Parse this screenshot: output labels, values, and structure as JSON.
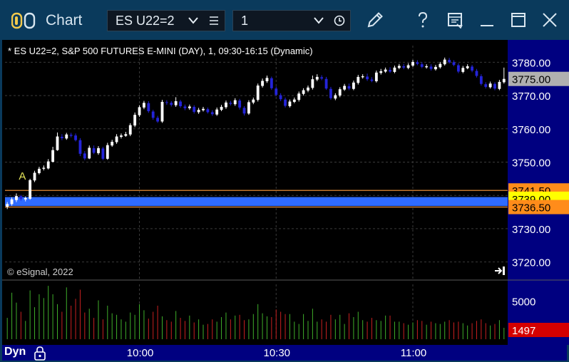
{
  "window": {
    "title": "Chart",
    "symbol_select": {
      "value": "ES U22=2"
    },
    "interval_select": {
      "value": "1"
    },
    "icons": {
      "app": "chart-app-icon",
      "menu": "list-icon",
      "clock": "clock-icon",
      "draw": "pencil-icon",
      "help": "question-icon",
      "layout": "window-layout-icon",
      "minimize": "minimize-icon",
      "maximize": "maximize-icon",
      "close": "close-icon"
    }
  },
  "chart": {
    "caption": "* ES U22=2, S&P 500 FUTURES E-MINI (DAY), 1, 09:30-16:15 (Dynamic)",
    "copyright": "© eSignal, 2022",
    "marker_label": "A",
    "colors": {
      "up": "#ffffff",
      "down": "#2424d8",
      "volume_up": "#3fae2a",
      "volume_down": "#c82020",
      "band": "#2f6bff",
      "band_border": "#ff9a3c",
      "price_axis_bg": "#000080",
      "grid": "#3a3a3a"
    }
  },
  "chart_data": {
    "type": "candlestick",
    "price_axis": {
      "ticks": [
        "3780.00",
        "3770.00",
        "3760.00",
        "3750.00",
        "3740.00",
        "3730.00",
        "3720.00"
      ],
      "tick_values": [
        3780,
        3770,
        3760,
        3750,
        3740,
        3730,
        3720
      ],
      "range": [
        3715,
        3785
      ]
    },
    "price_labels": [
      {
        "text": "3775.00",
        "value": 3775,
        "bg": "#b0b0b0",
        "fg": "#000000"
      },
      {
        "text": "3741.50",
        "value": 3741.5,
        "bg": "#ff8c1a",
        "fg": "#000000"
      },
      {
        "text": "3739.00",
        "value": 3739,
        "bg": "#ffff00",
        "fg": "#000000"
      },
      {
        "text": "3736.50",
        "value": 3736.5,
        "bg": "#ff8c1a",
        "fg": "#000000"
      }
    ],
    "band": {
      "top": 3739.5,
      "bottom": 3736.8
    },
    "band_lines": [
      3741.5,
      3736.5
    ],
    "volume_axis": {
      "ticks": [
        "5000"
      ],
      "tick_values": [
        5000
      ],
      "max": 7200,
      "last_label": "1497"
    },
    "time_axis": {
      "labels": [
        "10:00",
        "10:30",
        "11:00"
      ],
      "label_bars": [
        29,
        59,
        89
      ]
    },
    "bars": [
      [
        3736.6,
        3737.4,
        3738.0,
        3735.9,
        2800
      ],
      [
        3737.4,
        3738.8,
        3739.4,
        3736.9,
        6100
      ],
      [
        3738.6,
        3739.8,
        3740.6,
        3738.0,
        4800
      ],
      [
        3739.8,
        3738.9,
        3740.2,
        3738.4,
        3600
      ],
      [
        3738.8,
        3739.2,
        3739.7,
        3738.2,
        2400
      ],
      [
        3739.0,
        3744.6,
        3745.0,
        3738.7,
        6400
      ],
      [
        3744.5,
        3746.8,
        3747.4,
        3744.0,
        4200
      ],
      [
        3746.7,
        3748.0,
        3748.6,
        3746.3,
        5900
      ],
      [
        3748.0,
        3748.3,
        3749.0,
        3747.5,
        5400
      ],
      [
        3748.1,
        3750.2,
        3750.9,
        3747.8,
        7000
      ],
      [
        3750.1,
        3753.6,
        3754.6,
        3749.9,
        5900
      ],
      [
        3753.6,
        3757.7,
        3758.9,
        3753.4,
        4600
      ],
      [
        3757.6,
        3757.2,
        3758.4,
        3756.6,
        3600
      ],
      [
        3757.1,
        3758.3,
        3758.8,
        3756.7,
        6800
      ],
      [
        3758.2,
        3757.9,
        3758.8,
        3757.4,
        4400
      ],
      [
        3758.0,
        3756.6,
        3758.6,
        3756.2,
        5300
      ],
      [
        3756.6,
        3752.5,
        3757.2,
        3751.8,
        6500
      ],
      [
        3752.6,
        3751.1,
        3753.3,
        3750.6,
        3500
      ],
      [
        3751.1,
        3754.3,
        3755.0,
        3750.9,
        4000
      ],
      [
        3754.2,
        3752.8,
        3755.0,
        3752.4,
        2800
      ],
      [
        3752.7,
        3754.2,
        3754.8,
        3752.2,
        5100
      ],
      [
        3754.1,
        3751.0,
        3754.6,
        3750.6,
        2600
      ],
      [
        3751.0,
        3755.1,
        3755.8,
        3750.7,
        4400
      ],
      [
        3755.0,
        3756.1,
        3756.7,
        3754.6,
        3400
      ],
      [
        3756.0,
        3757.7,
        3758.4,
        3755.5,
        3200
      ],
      [
        3757.6,
        3758.0,
        3758.6,
        3757.1,
        2600
      ],
      [
        3757.9,
        3758.4,
        3759.1,
        3757.6,
        2300
      ],
      [
        3758.3,
        3761.1,
        3761.7,
        3757.8,
        3500
      ],
      [
        3761.0,
        3764.2,
        3764.9,
        3760.5,
        3200
      ],
      [
        3764.1,
        3766.5,
        3767.1,
        3763.6,
        4600
      ],
      [
        3766.4,
        3767.8,
        3768.4,
        3765.9,
        3800
      ],
      [
        3767.7,
        3765.3,
        3768.3,
        3764.8,
        2700
      ],
      [
        3765.2,
        3763.3,
        3765.7,
        3762.7,
        3600
      ],
      [
        3763.3,
        3762.2,
        3763.9,
        3761.8,
        4400
      ],
      [
        3762.2,
        3768.1,
        3768.7,
        3761.8,
        3000
      ],
      [
        3768.0,
        3767.9,
        3768.6,
        3767.2,
        2500
      ],
      [
        3767.8,
        3767.2,
        3768.3,
        3766.7,
        2300
      ],
      [
        3767.1,
        3768.3,
        3769.5,
        3766.6,
        3700
      ],
      [
        3768.2,
        3766.8,
        3768.7,
        3766.3,
        2800
      ],
      [
        3766.7,
        3766.2,
        3767.3,
        3765.6,
        2400
      ],
      [
        3766.2,
        3766.7,
        3767.3,
        3765.7,
        3100
      ],
      [
        3766.6,
        3765.1,
        3767.1,
        3764.6,
        2200
      ],
      [
        3765.0,
        3765.7,
        3766.3,
        3764.5,
        2600
      ],
      [
        3765.6,
        3766.0,
        3766.6,
        3765.2,
        1900
      ],
      [
        3765.9,
        3765.0,
        3766.4,
        3764.6,
        2000
      ],
      [
        3765.0,
        3764.4,
        3765.6,
        3763.9,
        2600
      ],
      [
        3764.3,
        3765.8,
        3766.4,
        3763.9,
        2300
      ],
      [
        3765.7,
        3766.6,
        3767.2,
        3765.3,
        2900
      ],
      [
        3766.5,
        3767.9,
        3768.5,
        3766.0,
        3500
      ],
      [
        3767.8,
        3767.5,
        3768.4,
        3767.0,
        2600
      ],
      [
        3767.4,
        3768.6,
        3769.2,
        3766.9,
        3100
      ],
      [
        3768.5,
        3766.4,
        3769.0,
        3765.8,
        3200
      ],
      [
        3766.3,
        3764.6,
        3766.8,
        3764.0,
        2500
      ],
      [
        3764.6,
        3768.0,
        3768.6,
        3764.2,
        2600
      ],
      [
        3767.9,
        3768.8,
        3769.4,
        3767.4,
        3300
      ],
      [
        3768.7,
        3773.0,
        3773.6,
        3768.2,
        4600
      ],
      [
        3772.9,
        3774.4,
        3775.1,
        3772.4,
        3400
      ],
      [
        3774.3,
        3775.3,
        3776.0,
        3773.8,
        3000
      ],
      [
        3775.2,
        3772.2,
        3775.7,
        3771.7,
        2900
      ],
      [
        3772.1,
        3770.2,
        3772.7,
        3769.8,
        3900
      ],
      [
        3770.1,
        3768.9,
        3770.7,
        3768.3,
        3600
      ],
      [
        3768.8,
        3766.9,
        3769.4,
        3766.4,
        3300
      ],
      [
        3766.8,
        3768.2,
        3768.8,
        3766.4,
        3300
      ],
      [
        3768.1,
        3768.8,
        3769.4,
        3767.7,
        2300
      ],
      [
        3768.7,
        3770.6,
        3771.2,
        3768.2,
        2000
      ],
      [
        3770.5,
        3771.6,
        3772.2,
        3770.0,
        3300
      ],
      [
        3771.5,
        3772.4,
        3773.0,
        3771.0,
        2400
      ],
      [
        3772.3,
        3774.9,
        3776.0,
        3771.8,
        4000
      ],
      [
        3774.8,
        3775.6,
        3776.4,
        3774.3,
        2300
      ],
      [
        3775.5,
        3775.1,
        3776.1,
        3774.6,
        2600
      ],
      [
        3775.0,
        3772.1,
        3775.6,
        3771.7,
        2300
      ],
      [
        3772.0,
        3769.2,
        3772.6,
        3768.7,
        3200
      ],
      [
        3769.1,
        3770.1,
        3770.7,
        3768.6,
        2600
      ],
      [
        3770.0,
        3771.9,
        3772.5,
        3769.5,
        3200
      ],
      [
        3771.8,
        3772.9,
        3773.5,
        3771.4,
        2000
      ],
      [
        3772.8,
        3772.1,
        3773.6,
        3771.6,
        3400
      ],
      [
        3772.0,
        3773.9,
        3774.5,
        3771.6,
        2900
      ],
      [
        3773.8,
        3775.6,
        3776.2,
        3773.3,
        3600
      ],
      [
        3775.5,
        3775.8,
        3776.4,
        3775.1,
        2500
      ],
      [
        3775.7,
        3774.9,
        3776.6,
        3774.4,
        2300
      ],
      [
        3774.8,
        3774.4,
        3775.5,
        3774.0,
        2800
      ],
      [
        3774.3,
        3776.9,
        3777.5,
        3773.9,
        2500
      ],
      [
        3776.8,
        3777.3,
        3778.0,
        3776.3,
        2400
      ],
      [
        3777.2,
        3777.8,
        3778.4,
        3776.8,
        3100
      ],
      [
        3777.7,
        3777.2,
        3778.5,
        3776.8,
        3100
      ],
      [
        3777.1,
        3778.4,
        3779.0,
        3776.7,
        2300
      ],
      [
        3778.3,
        3778.9,
        3779.5,
        3777.9,
        2300
      ],
      [
        3778.8,
        3778.4,
        3779.5,
        3777.9,
        2100
      ],
      [
        3778.3,
        3779.1,
        3779.7,
        3777.9,
        1900
      ],
      [
        3779.0,
        3780.1,
        3780.7,
        3778.6,
        2200
      ],
      [
        3780.0,
        3779.5,
        3780.6,
        3779.1,
        2500
      ],
      [
        3779.4,
        3778.6,
        3780.0,
        3778.2,
        2400
      ],
      [
        3778.5,
        3778.8,
        3779.4,
        3778.1,
        1900
      ],
      [
        3778.7,
        3778.0,
        3779.4,
        3777.5,
        2300
      ],
      [
        3777.9,
        3778.6,
        3779.2,
        3777.5,
        2100
      ],
      [
        3778.5,
        3779.5,
        3780.1,
        3778.1,
        2000
      ],
      [
        3779.4,
        3780.8,
        3781.4,
        3779.0,
        2300
      ],
      [
        3780.7,
        3780.0,
        3781.3,
        3779.6,
        2500
      ],
      [
        3780.0,
        3779.2,
        3780.6,
        3778.8,
        2200
      ],
      [
        3779.1,
        3777.2,
        3779.7,
        3776.7,
        2300
      ],
      [
        3777.1,
        3778.3,
        3778.9,
        3776.7,
        2100
      ],
      [
        3778.2,
        3778.8,
        3779.4,
        3777.9,
        1800
      ],
      [
        3778.7,
        3777.5,
        3779.2,
        3777.0,
        2100
      ],
      [
        3777.4,
        3775.9,
        3778.0,
        3775.4,
        2400
      ],
      [
        3775.8,
        3773.5,
        3776.4,
        3773.0,
        2600
      ],
      [
        3773.4,
        3772.6,
        3774.0,
        3772.1,
        2100
      ],
      [
        3772.5,
        3773.6,
        3774.2,
        3772.1,
        1800
      ],
      [
        3773.5,
        3772.1,
        3774.0,
        3771.6,
        2000
      ],
      [
        3772.0,
        3774.1,
        3774.7,
        3771.6,
        2500
      ],
      [
        3774.0,
        3775.0,
        3778.4,
        3773.6,
        1497
      ]
    ]
  },
  "statusbar": {
    "mode_label": "Dyn",
    "lock_icon": "lock-icon",
    "jump_icon": "jump-to-end-icon"
  }
}
